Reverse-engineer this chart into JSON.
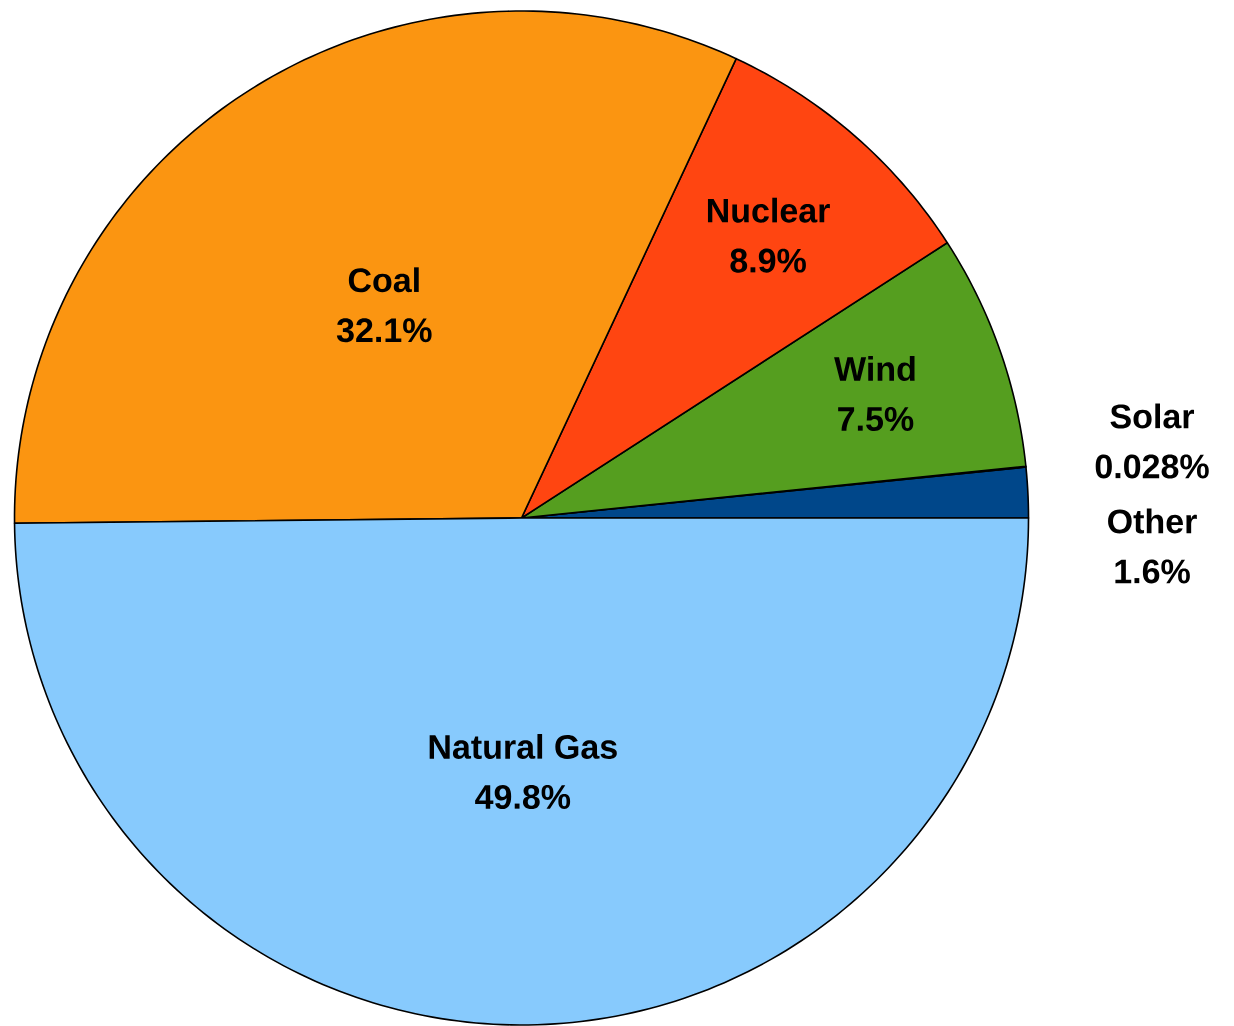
{
  "chart_data": {
    "type": "pie",
    "categories": [
      "Other",
      "Solar",
      "Wind",
      "Nuclear",
      "Coal",
      "Natural Gas"
    ],
    "values": [
      1.6,
      0.028,
      7.5,
      8.9,
      32.1,
      49.8
    ],
    "value_labels": [
      "1.6%",
      "0.028%",
      "7.5%",
      "8.9%",
      "32.1%",
      "49.8%"
    ],
    "colors": [
      "#00478a",
      "#ffd700",
      "#559e1f",
      "#ff4511",
      "#fb9511",
      "#87cafd"
    ]
  }
}
